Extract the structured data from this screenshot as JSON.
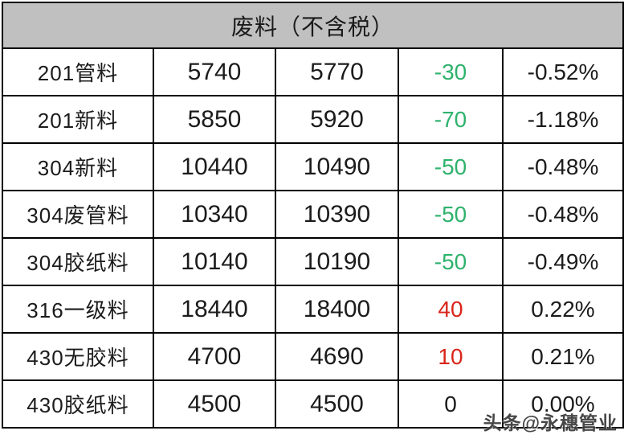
{
  "table": {
    "header": "废料（不含税）",
    "rows": [
      {
        "name": "201管料",
        "price_a": "5740",
        "price_b": "5770",
        "change": "-30",
        "change_pct": "-0.52%",
        "trend": "down"
      },
      {
        "name": "201新料",
        "price_a": "5850",
        "price_b": "5920",
        "change": "-70",
        "change_pct": "-1.18%",
        "trend": "down"
      },
      {
        "name": "304新料",
        "price_a": "10440",
        "price_b": "10490",
        "change": "-50",
        "change_pct": "-0.48%",
        "trend": "down"
      },
      {
        "name": "304废管料",
        "price_a": "10340",
        "price_b": "10390",
        "change": "-50",
        "change_pct": "-0.48%",
        "trend": "down"
      },
      {
        "name": "304胶纸料",
        "price_a": "10140",
        "price_b": "10190",
        "change": "-50",
        "change_pct": "-0.49%",
        "trend": "down"
      },
      {
        "name": "316一级料",
        "price_a": "18440",
        "price_b": "18400",
        "change": "40",
        "change_pct": "0.22%",
        "trend": "up"
      },
      {
        "name": "430无胶料",
        "price_a": "4700",
        "price_b": "4690",
        "change": "10",
        "change_pct": "0.21%",
        "trend": "up"
      },
      {
        "name": "430胶纸料",
        "price_a": "4500",
        "price_b": "4500",
        "change": "0",
        "change_pct": "0.00%",
        "trend": "flat"
      }
    ]
  },
  "watermark": {
    "text": "头条@永穗管业"
  },
  "colors": {
    "header_bg": "#c0c0c0",
    "border": "#000000",
    "trend_down_green": "#2fb26d",
    "trend_up_red": "#d9261b",
    "trend_flat_black": "#1b1b1b"
  },
  "trend_colors": {
    "down": "#2fb26d",
    "up": "#d9261b",
    "flat": "#1b1b1b"
  },
  "chart_data": {
    "type": "table",
    "title": "废料（不含税）",
    "rows": [
      [
        "201管料",
        5740,
        5770,
        -30,
        "-0.52%"
      ],
      [
        "201新料",
        5850,
        5920,
        -70,
        "-1.18%"
      ],
      [
        "304新料",
        10440,
        10490,
        -50,
        "-0.48%"
      ],
      [
        "304废管料",
        10340,
        10390,
        -50,
        "-0.48%"
      ],
      [
        "304胶纸料",
        10140,
        10190,
        -50,
        "-0.49%"
      ],
      [
        "316一级料",
        18440,
        18400,
        40,
        "0.22%"
      ],
      [
        "430无胶料",
        4700,
        4690,
        10,
        "0.21%"
      ],
      [
        "430胶纸料",
        4500,
        4500,
        0,
        "0.00%"
      ]
    ]
  }
}
